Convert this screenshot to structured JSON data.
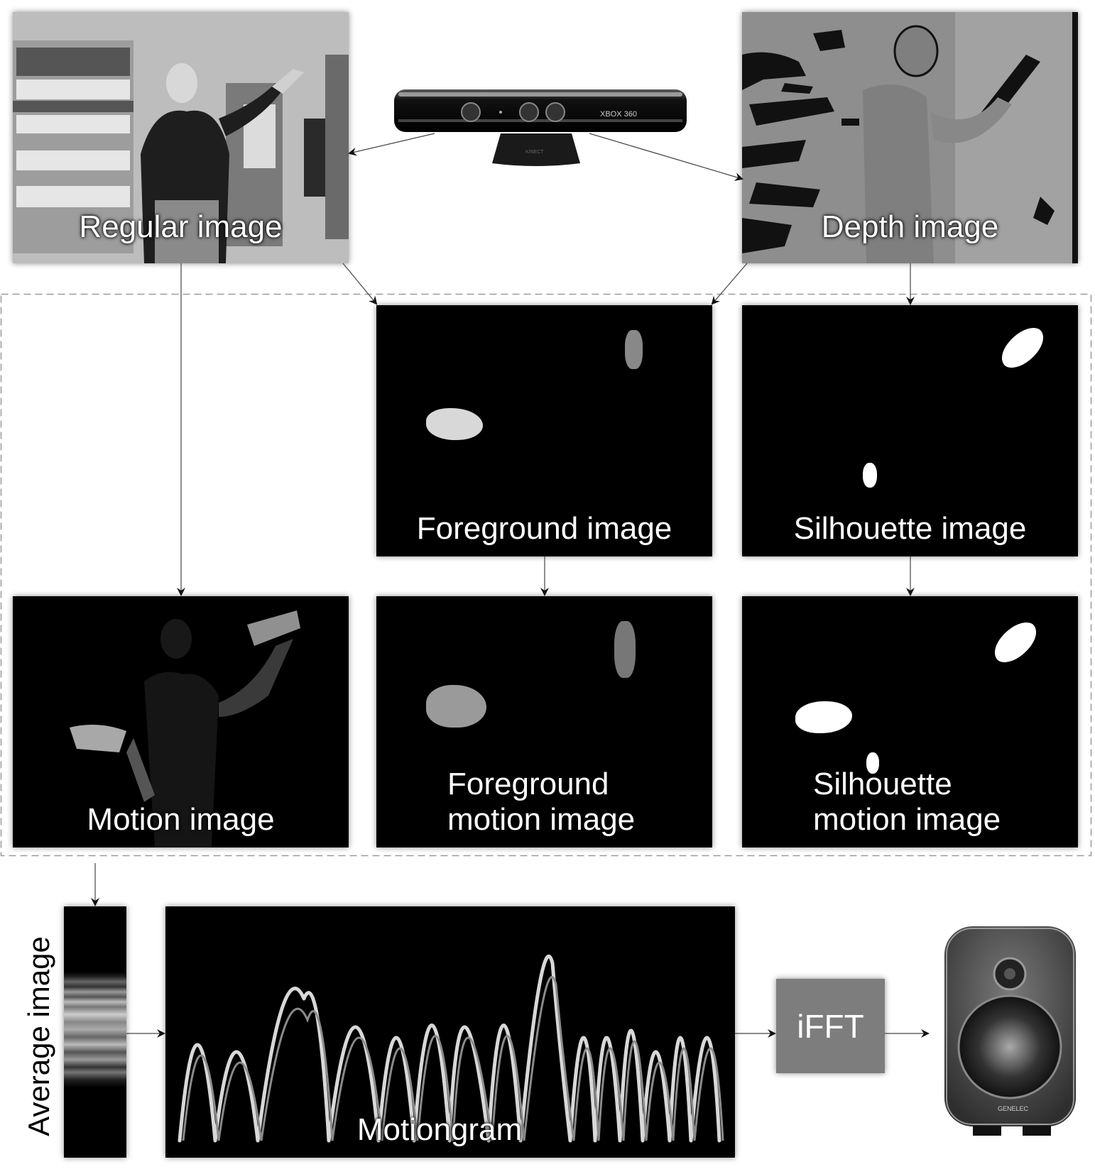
{
  "nodes": {
    "regular": "Regular image",
    "depth": "Depth image",
    "foreground": "Foreground image",
    "silhouette": "Silhouette image",
    "motion": "Motion image",
    "fg_motion_1": "Foreground",
    "fg_motion_2": "motion image",
    "sil_motion_1": "Silhouette",
    "sil_motion_2": "motion image",
    "average": "Average image",
    "motiongram": "Motiongram",
    "ifft": "iFFT"
  },
  "kinect": {
    "brand": "XBOX 360",
    "front": "KINECT"
  },
  "speaker": {
    "brand": "GENELEC"
  }
}
